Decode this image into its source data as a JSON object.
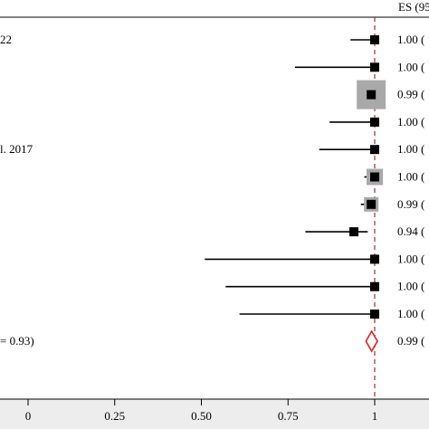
{
  "chart_data": {
    "type": "forest",
    "title": "",
    "xlabel": "",
    "ylabel": "",
    "header_label": "ES (95",
    "null_line_value": 1,
    "xlim": [
      -0.08,
      1.16
    ],
    "xticks": [
      0,
      0.25,
      0.5,
      0.75,
      1
    ],
    "xtick_labels": [
      "0",
      "0.25",
      "0.50",
      "0.75",
      "1"
    ],
    "studies": [
      {
        "label": "22",
        "es": 1.0,
        "lo": 0.93,
        "hi": 1.0,
        "weight": 0.4,
        "es_text": "1.00 ("
      },
      {
        "label": "",
        "es": 1.0,
        "lo": 0.77,
        "hi": 1.0,
        "weight": 0.4,
        "es_text": "1.00 ("
      },
      {
        "label": "",
        "es": 0.99,
        "lo": 0.98,
        "hi": 1.0,
        "weight": 1.0,
        "es_text": "0.99 ("
      },
      {
        "label": "",
        "es": 1.0,
        "lo": 0.87,
        "hi": 1.0,
        "weight": 0.4,
        "es_text": "1.00 ("
      },
      {
        "label": "l. 2017",
        "es": 1.0,
        "lo": 0.84,
        "hi": 1.0,
        "weight": 0.4,
        "es_text": "1.00 ("
      },
      {
        "label": "",
        "es": 1.0,
        "lo": 0.97,
        "hi": 1.0,
        "weight": 0.58,
        "es_text": "1.00 ("
      },
      {
        "label": "",
        "es": 0.99,
        "lo": 0.96,
        "hi": 1.0,
        "weight": 0.52,
        "es_text": "0.99 ("
      },
      {
        "label": "",
        "es": 0.94,
        "lo": 0.8,
        "hi": 0.98,
        "weight": 0.4,
        "es_text": "0.94 ("
      },
      {
        "label": "",
        "es": 1.0,
        "lo": 0.51,
        "hi": 1.0,
        "weight": 0.4,
        "es_text": "1.00 ("
      },
      {
        "label": "",
        "es": 1.0,
        "lo": 0.57,
        "hi": 1.0,
        "weight": 0.4,
        "es_text": "1.00 ("
      },
      {
        "label": "",
        "es": 1.0,
        "lo": 0.61,
        "hi": 1.0,
        "weight": 0.4,
        "es_text": "1.00 ("
      }
    ],
    "overall": {
      "label": "= 0.93)",
      "es": 0.99,
      "lo": 0.98,
      "hi": 1.0,
      "es_text": "0.99 ("
    },
    "colors": {
      "marker": "#000000",
      "weight_box": "#a9a9a9",
      "null_line": "#b03a3a",
      "diamond": "#e02020",
      "axis_band": "#ededed"
    }
  }
}
